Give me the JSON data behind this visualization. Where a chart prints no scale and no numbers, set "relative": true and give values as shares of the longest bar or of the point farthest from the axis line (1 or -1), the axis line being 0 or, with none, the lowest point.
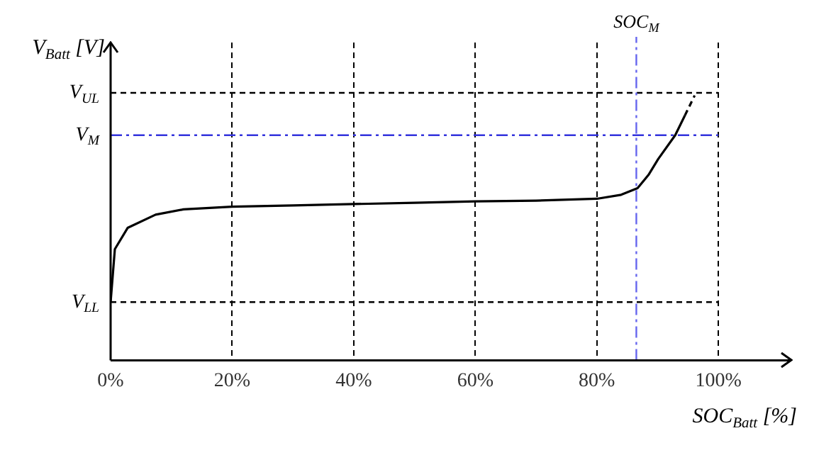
{
  "chart_data": {
    "type": "line",
    "relative": true,
    "xlabel": "SOC$_{Batt}$ [%]",
    "ylabel": "V$_{Batt}$ [V]",
    "xlim": [
      0,
      112
    ],
    "xticks": [
      {
        "value": 0,
        "label": "0%"
      },
      {
        "value": 20,
        "label": "20%"
      },
      {
        "value": 40,
        "label": "40%"
      },
      {
        "value": 60,
        "label": "60%"
      },
      {
        "value": 80,
        "label": "80%"
      },
      {
        "value": 100,
        "label": "100%"
      }
    ],
    "grid": "x",
    "legend": false,
    "marker": "none",
    "series": [
      {
        "color": "#000000",
        "line_style": "solid",
        "x": [
          0,
          0.7,
          2.8,
          7.4,
          12,
          20,
          30,
          40,
          50,
          60,
          70,
          80,
          84,
          86.7,
          88.5,
          90.1,
          92.9,
          94.5
        ],
        "values": [
          0.22,
          0.42,
          0.5,
          0.55,
          0.57,
          0.58,
          0.585,
          0.59,
          0.595,
          0.6,
          0.603,
          0.61,
          0.625,
          0.65,
          0.7,
          0.76,
          0.85,
          0.925
        ]
      },
      {
        "color": "#000000",
        "line_style": "dashed",
        "x": [
          94.5,
          96.1
        ],
        "values": [
          0.925,
          1
        ]
      }
    ],
    "ref_lines": [
      {
        "axis": "y",
        "value": 1.01,
        "label": "V$_{UL}$",
        "color": "#000000",
        "line_style": "dashed"
      },
      {
        "axis": "y",
        "value": 0.85,
        "label": "V$_{M}$",
        "color": "#3333dd",
        "line_style": "dashdot"
      },
      {
        "axis": "y",
        "value": 0.22,
        "label": "V$_{LL}$",
        "color": "#000000",
        "line_style": "dashed"
      },
      {
        "axis": "x",
        "value": 86.5,
        "label": "SOC$_{M}$",
        "color": "#6666ee",
        "line_style": "dashdot"
      }
    ]
  }
}
